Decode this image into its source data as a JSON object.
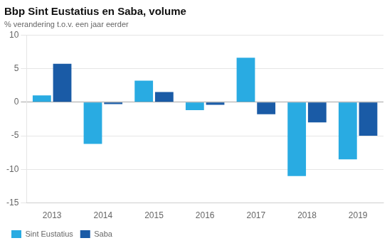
{
  "chart_data": {
    "type": "bar",
    "title": "Bbp Sint Eustatius en Saba, volume",
    "subtitle": "% verandering t.o.v. een jaar eerder",
    "categories": [
      "2013",
      "2014",
      "2015",
      "2016",
      "2017",
      "2018",
      "2019"
    ],
    "series": [
      {
        "name": "Sint Eustatius",
        "color": "#29ABE2",
        "values": [
          1.0,
          -6.2,
          3.2,
          -1.2,
          6.6,
          -11.0,
          -8.5
        ]
      },
      {
        "name": "Saba",
        "color": "#1A5BA6",
        "values": [
          5.7,
          -0.3,
          1.5,
          -0.4,
          -1.8,
          -3.0,
          -5.0
        ]
      }
    ],
    "ylim": [
      -15,
      10
    ],
    "yticks": [
      -15,
      -10,
      -5,
      0,
      5,
      10
    ],
    "grid": true,
    "legend": "lower left"
  }
}
